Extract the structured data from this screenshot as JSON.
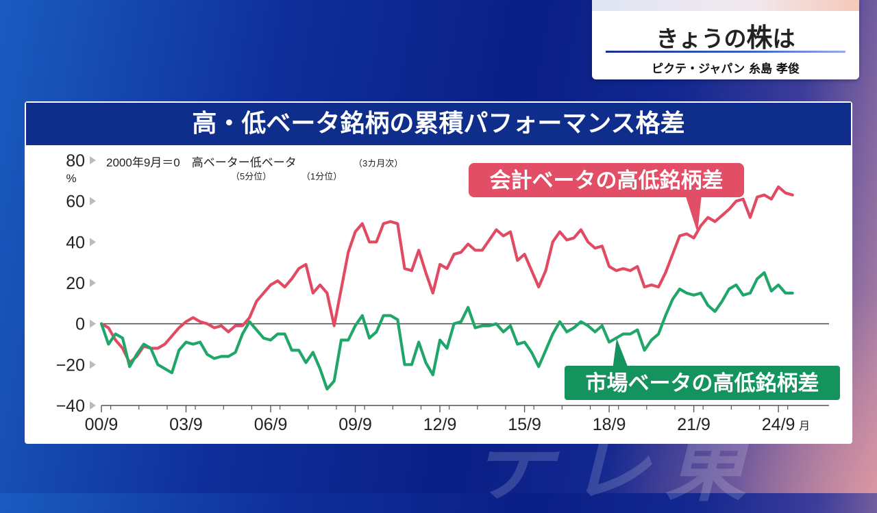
{
  "brand": {
    "title_a": "きょうの",
    "title_b": "株",
    "title_c": "は",
    "subtitle": "ピクテ・ジャパン 糸島 孝俊"
  },
  "watermark": "テレ東",
  "colors": {
    "header_bg": "#0f2e8c",
    "accounting_beta": "#e14a63",
    "market_beta": "#20a668",
    "callout_accounting": "#e24e65",
    "callout_market": "#14935e"
  },
  "chart_data": {
    "type": "line",
    "title": "高・低ベータ銘柄の累積パフォーマンス格差",
    "note_main": "2000年9月＝0　高ベーター低ベータ",
    "note_freq": "（3カ月次）",
    "note_high": "（5分位）",
    "note_low": "（1分位）",
    "yunit": "%",
    "ylim": [
      -40,
      80
    ],
    "yticks": [
      80,
      60,
      40,
      20,
      0,
      -20,
      -40
    ],
    "ytick_labels": [
      "80",
      "60",
      "40",
      "20",
      "0",
      "−20",
      "−40"
    ],
    "xlim": [
      2000.67,
      2025.25
    ],
    "xtick_positions": [
      2000.67,
      2003.67,
      2006.67,
      2009.67,
      2012.67,
      2015.67,
      2018.67,
      2021.67,
      2024.67
    ],
    "xtick_labels": [
      "00/9",
      "03/9",
      "06/9",
      "09/9",
      "12/9",
      "15/9",
      "18/9",
      "21/9",
      "24/9"
    ],
    "xtick_suffix": "月",
    "series": [
      {
        "name": "会計ベータの高低銘柄差",
        "color": "#e14a63",
        "x": [
          2000.67,
          2000.92,
          2001.17,
          2001.42,
          2001.67,
          2001.92,
          2002.17,
          2002.42,
          2002.67,
          2002.92,
          2003.17,
          2003.42,
          2003.67,
          2003.92,
          2004.17,
          2004.42,
          2004.67,
          2004.92,
          2005.17,
          2005.42,
          2005.67,
          2005.92,
          2006.17,
          2006.42,
          2006.67,
          2006.92,
          2007.17,
          2007.42,
          2007.67,
          2007.92,
          2008.17,
          2008.42,
          2008.67,
          2008.92,
          2009.17,
          2009.42,
          2009.67,
          2009.92,
          2010.17,
          2010.42,
          2010.67,
          2010.92,
          2011.17,
          2011.42,
          2011.67,
          2011.92,
          2012.17,
          2012.42,
          2012.67,
          2012.92,
          2013.17,
          2013.42,
          2013.67,
          2013.92,
          2014.17,
          2014.42,
          2014.67,
          2014.92,
          2015.17,
          2015.42,
          2015.67,
          2015.92,
          2016.17,
          2016.42,
          2016.67,
          2016.92,
          2017.17,
          2017.42,
          2017.67,
          2017.92,
          2018.17,
          2018.42,
          2018.67,
          2018.92,
          2019.17,
          2019.42,
          2019.67,
          2019.92,
          2020.17,
          2020.42,
          2020.67,
          2020.92,
          2021.17,
          2021.42,
          2021.67,
          2021.92,
          2022.17,
          2022.42,
          2022.67,
          2022.92,
          2023.17,
          2023.42,
          2023.67,
          2023.92,
          2024.17,
          2024.42,
          2024.67,
          2024.92,
          2025.17
        ],
        "values": [
          0,
          -2,
          -8,
          -12,
          -19,
          -16,
          -11,
          -12,
          -12,
          -10,
          -6,
          -2,
          1,
          3,
          1,
          0,
          -2,
          -1,
          -4,
          -1,
          -1,
          3,
          11,
          15,
          19,
          21,
          18,
          22,
          27,
          29,
          15,
          19,
          15,
          -1,
          17,
          35,
          45,
          49,
          40,
          40,
          49,
          50,
          49,
          27,
          26,
          36,
          25,
          15,
          29,
          27,
          34,
          35,
          39,
          36,
          36,
          41,
          46,
          43,
          45,
          31,
          34,
          26,
          18,
          26,
          40,
          45,
          41,
          42,
          46,
          40,
          37,
          38,
          28,
          26,
          27,
          26,
          28,
          18,
          19,
          18,
          25,
          34,
          43,
          44,
          42,
          48,
          52,
          50,
          53,
          56,
          60,
          61,
          52,
          62,
          63,
          61,
          67,
          64,
          63
        ],
        "label": "会計ベータの高低銘柄差"
      },
      {
        "name": "市場ベータの高低銘柄差",
        "color": "#20a668",
        "x": [
          2000.67,
          2000.92,
          2001.17,
          2001.42,
          2001.67,
          2001.92,
          2002.17,
          2002.42,
          2002.67,
          2002.92,
          2003.17,
          2003.42,
          2003.67,
          2003.92,
          2004.17,
          2004.42,
          2004.67,
          2004.92,
          2005.17,
          2005.42,
          2005.67,
          2005.92,
          2006.17,
          2006.42,
          2006.67,
          2006.92,
          2007.17,
          2007.42,
          2007.67,
          2007.92,
          2008.17,
          2008.42,
          2008.67,
          2008.92,
          2009.17,
          2009.42,
          2009.67,
          2009.92,
          2010.17,
          2010.42,
          2010.67,
          2010.92,
          2011.17,
          2011.42,
          2011.67,
          2011.92,
          2012.17,
          2012.42,
          2012.67,
          2012.92,
          2013.17,
          2013.42,
          2013.67,
          2013.92,
          2014.17,
          2014.42,
          2014.67,
          2014.92,
          2015.17,
          2015.42,
          2015.67,
          2015.92,
          2016.17,
          2016.42,
          2016.67,
          2016.92,
          2017.17,
          2017.42,
          2017.67,
          2017.92,
          2018.17,
          2018.42,
          2018.67,
          2018.92,
          2019.17,
          2019.42,
          2019.67,
          2019.92,
          2020.17,
          2020.42,
          2020.67,
          2020.92,
          2021.17,
          2021.42,
          2021.67,
          2021.92,
          2022.17,
          2022.42,
          2022.67,
          2022.92,
          2023.17,
          2023.42,
          2023.67,
          2023.92,
          2024.17,
          2024.42,
          2024.67,
          2024.92,
          2025.17
        ],
        "values": [
          0,
          -10,
          -5,
          -7,
          -21,
          -15,
          -10,
          -12,
          -20,
          -22,
          -24,
          -13,
          -9,
          -10,
          -9,
          -15,
          -17,
          -16,
          -16,
          -14,
          -5,
          1,
          -3,
          -7,
          -8,
          -5,
          -5,
          -13,
          -13,
          -19,
          -14,
          -22,
          -32,
          -28,
          -8,
          -8,
          -1,
          4,
          -7,
          -4,
          4,
          4,
          2,
          -20,
          -20,
          -9,
          -19,
          -25,
          -8,
          -12,
          0,
          1,
          8,
          -2,
          -1,
          -1,
          0,
          -4,
          -1,
          -10,
          -9,
          -14,
          -21,
          -13,
          -5,
          1,
          -4,
          -2,
          1,
          -1,
          -4,
          -1,
          -9,
          -7,
          -5,
          -5,
          -3,
          -13,
          -8,
          -5,
          4,
          12,
          17,
          15,
          14,
          15,
          9,
          6,
          11,
          17,
          19,
          14,
          15,
          22,
          25,
          16,
          19,
          15,
          15
        ],
        "label": "市場ベータの高低銘柄差"
      }
    ],
    "legend": "callouts with pointers on lines"
  }
}
